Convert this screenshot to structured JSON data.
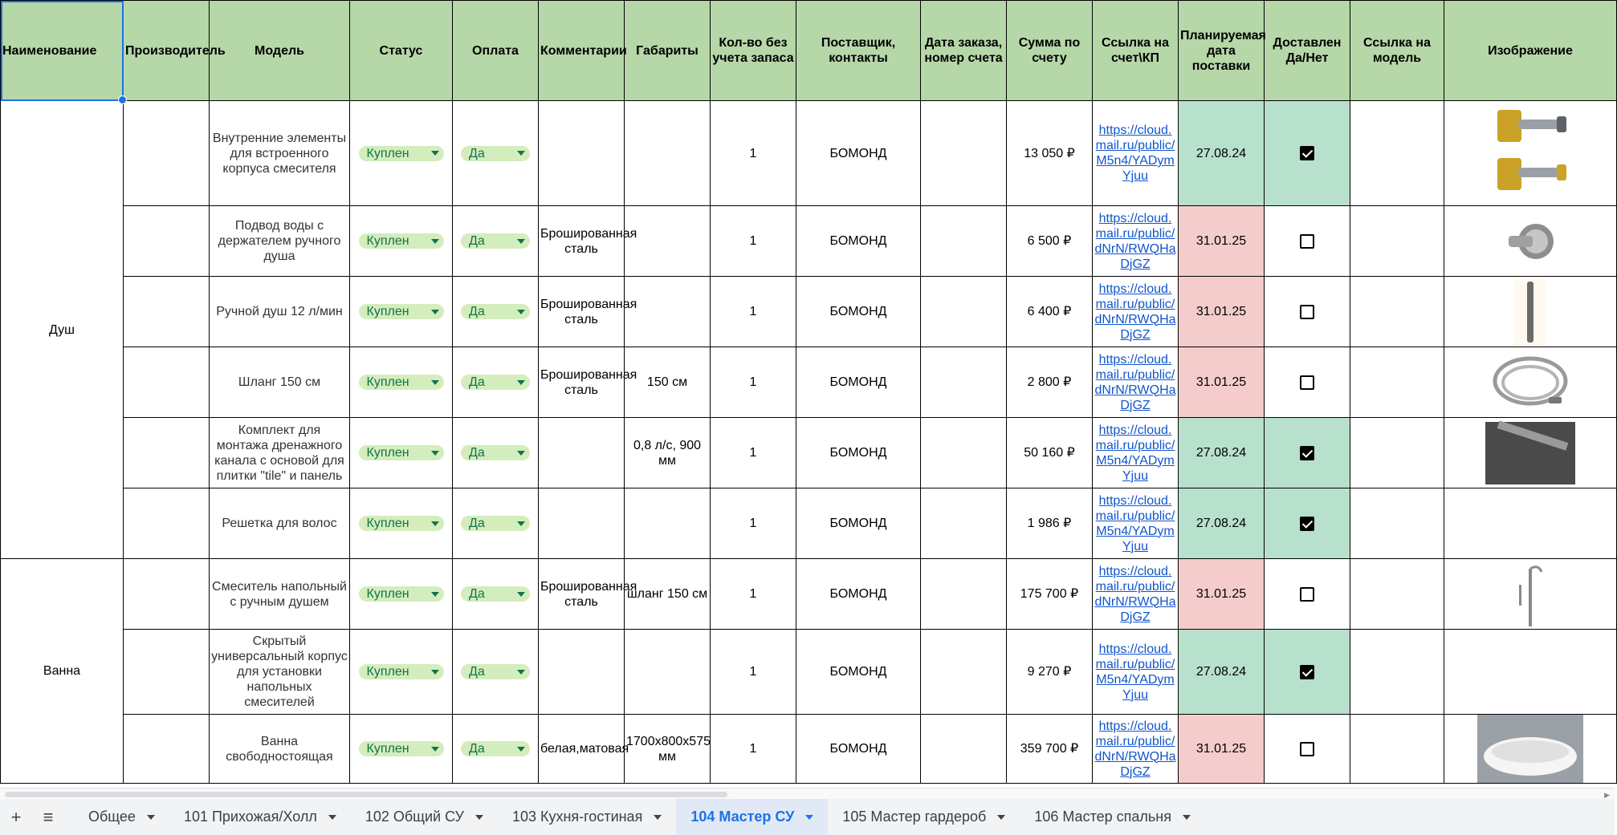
{
  "headers": [
    "Наименование",
    "Производитель",
    "Модель",
    "Статус",
    "Оплата",
    "Комментарии",
    "Габариты",
    "Кол-во без учета запаса",
    "Поставщик, контакты",
    "Дата заказа, номер счета",
    "Сумма по счету",
    "Ссылка на счет\\КП",
    "Планируемая дата поставки",
    "Доставлен Да/Нет",
    "Ссылка на модель",
    "Изображение"
  ],
  "groups": {
    "dush": "Душ",
    "vanna": "Ванна"
  },
  "rows": [
    {
      "model": "Внутренние элементы для встроенного корпуса смесителя",
      "status": "Куплен",
      "pay": "Да",
      "comment": "",
      "size": "",
      "qty": "1",
      "supplier": "БОМОНД",
      "sum": "13 050 ₽",
      "link": "https://cloud.mail.ru/public/M5n4/YADymYjuu",
      "date": "27.08.24",
      "date_color": "green",
      "delivered": true,
      "image": "valve-image"
    },
    {
      "model": "Подвод воды с держателем ручного душа",
      "status": "Куплен",
      "pay": "Да",
      "comment": "Брошированная сталь",
      "size": "",
      "qty": "1",
      "supplier": "БОМОНД",
      "sum": "6 500 ₽",
      "link": "https://cloud.mail.ru/public/dNrN/RWQHaDjGZ",
      "date": "31.01.25",
      "date_color": "red",
      "delivered": false,
      "image": "holder-image"
    },
    {
      "model": "Ручной душ 12 л/мин",
      "status": "Куплен",
      "pay": "Да",
      "comment": "Брошированная сталь",
      "size": "",
      "qty": "1",
      "supplier": "БОМОНД",
      "sum": "6 400 ₽",
      "link": "https://cloud.mail.ru/public/dNrN/RWQHaDjGZ",
      "date": "31.01.25",
      "date_color": "red",
      "delivered": false,
      "image": "handshower-image"
    },
    {
      "model": "Шланг 150 см",
      "status": "Куплен",
      "pay": "Да",
      "comment": "Брошированная сталь",
      "size": "150 см",
      "qty": "1",
      "supplier": "БОМОНД",
      "sum": "2 800 ₽",
      "link": "https://cloud.mail.ru/public/dNrN/RWQHaDjGZ",
      "date": "31.01.25",
      "date_color": "red",
      "delivered": false,
      "image": "hose-image"
    },
    {
      "model": "Комплект для монтажа дренажного канала с основой для плитки \"tile\" и панель",
      "status": "Куплен",
      "pay": "Да",
      "comment": "",
      "size": "0,8 л/с, 900 мм",
      "qty": "1",
      "supplier": "БОМОНД",
      "sum": "50 160 ₽",
      "link": "https://cloud.mail.ru/public/M5n4/YADymYjuu",
      "date": "27.08.24",
      "date_color": "green",
      "delivered": true,
      "image": "drain-image"
    },
    {
      "model": "Решетка для волос",
      "status": "Куплен",
      "pay": "Да",
      "comment": "",
      "size": "",
      "qty": "1",
      "supplier": "БОМОНД",
      "sum": "1 986 ₽",
      "link": "https://cloud.mail.ru/public/M5n4/YADymYjuu",
      "date": "27.08.24",
      "date_color": "green",
      "delivered": true,
      "image": ""
    },
    {
      "model": "Смеситель напольный с ручным душем",
      "status": "Куплен",
      "pay": "Да",
      "comment": "Брошированная сталь",
      "size": "шланг 150 см",
      "qty": "1",
      "supplier": "БОМОНД",
      "sum": "175 700 ₽",
      "link": "https://cloud.mail.ru/public/dNrN/RWQHaDjGZ",
      "date": "31.01.25",
      "date_color": "red",
      "delivered": false,
      "image": "floor-mixer-image"
    },
    {
      "model": "Скрытый универсальный корпус для установки напольных смесителей",
      "status": "Куплен",
      "pay": "Да",
      "comment": "",
      "size": "",
      "qty": "1",
      "supplier": "БОМОНД",
      "sum": "9 270 ₽",
      "link": "https://cloud.mail.ru/public/M5n4/YADymYjuu",
      "date": "27.08.24",
      "date_color": "green",
      "delivered": true,
      "image": ""
    },
    {
      "model": "Ванна свободностоящая",
      "status": "Куплен",
      "pay": "Да",
      "comment": "белая,матовая",
      "size": "1700x800x575 мм",
      "qty": "1",
      "supplier": "БОМОНД",
      "sum": "359 700 ₽",
      "link": "https://cloud.mail.ru/public/dNrN/RWQHaDjGZ",
      "date": "31.01.25",
      "date_color": "red",
      "delivered": false,
      "image": "bathtub-image"
    }
  ],
  "tabs": [
    {
      "label": "Общее"
    },
    {
      "label": "101 Прихожая/Холл"
    },
    {
      "label": "102 Общий СУ"
    },
    {
      "label": "103 Кухня-гостиная"
    },
    {
      "label": "104 Мастер СУ",
      "active": true
    },
    {
      "label": "105 Мастер гардероб"
    },
    {
      "label": "106 Мастер спальня"
    }
  ],
  "colors": {
    "header_bg": "#b6d7a8",
    "chip_bg": "#d4edbc",
    "chip_text": "#11734b",
    "date_green": "#b7e1cd",
    "date_red": "#f4cccc",
    "active_tab": "#1a73e8"
  }
}
